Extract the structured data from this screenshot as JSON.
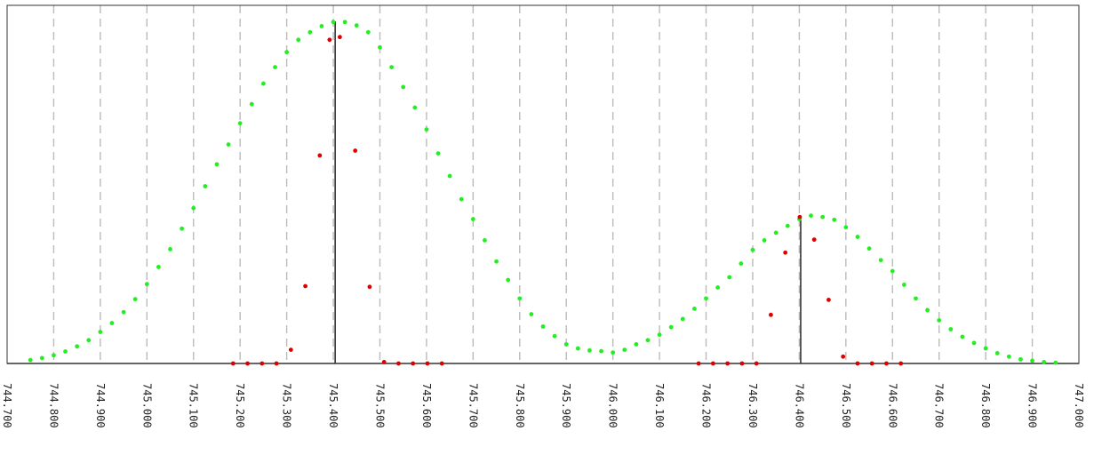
{
  "chart_data": {
    "type": "scatter",
    "title": "",
    "xlabel": "",
    "ylabel": "",
    "xlim": [
      744.7,
      747.0
    ],
    "ylim": [
      0,
      1.0
    ],
    "grid": "vertical dashed",
    "legend": "none",
    "x_ticks": [
      "744.700",
      "744.800",
      "744.900",
      "745.000",
      "745.100",
      "745.200",
      "745.300",
      "745.400",
      "745.500",
      "745.600",
      "745.700",
      "745.800",
      "745.900",
      "746.000",
      "746.100",
      "746.200",
      "746.300",
      "746.400",
      "746.500",
      "746.600",
      "746.700",
      "746.800",
      "746.900",
      "747.000"
    ],
    "tick_values": [
      744.7,
      744.8,
      744.9,
      745.0,
      745.1,
      745.2,
      745.3,
      745.4,
      745.5,
      745.6,
      745.7,
      745.8,
      745.9,
      746.0,
      746.1,
      746.2,
      746.3,
      746.4,
      746.5,
      746.6,
      746.7,
      746.8,
      746.9,
      747.0
    ],
    "colors": {
      "theoretical": "#22ee22",
      "observed": "#dd0000",
      "stick": "#333333",
      "grid": "#bbbbbb",
      "frame": "#333333"
    },
    "series": [
      {
        "points": [
          [
            744.75,
            0.01
          ],
          [
            744.775,
            0.016
          ],
          [
            744.8,
            0.024
          ],
          [
            744.825,
            0.035
          ],
          [
            744.85,
            0.05
          ],
          [
            744.875,
            0.068
          ],
          [
            744.9,
            0.092
          ],
          [
            744.925,
            0.118
          ],
          [
            744.95,
            0.15
          ],
          [
            744.975,
            0.188
          ],
          [
            745.0,
            0.232
          ],
          [
            745.025,
            0.282
          ],
          [
            745.05,
            0.334
          ],
          [
            745.075,
            0.394
          ],
          [
            745.1,
            0.454
          ],
          [
            745.125,
            0.518
          ],
          [
            745.15,
            0.582
          ],
          [
            745.175,
            0.64
          ],
          [
            745.2,
            0.702
          ],
          [
            745.225,
            0.758
          ],
          [
            745.25,
            0.818
          ],
          [
            745.275,
            0.866
          ],
          [
            745.3,
            0.91
          ],
          [
            745.325,
            0.946
          ],
          [
            745.35,
            0.968
          ],
          [
            745.375,
            0.986
          ],
          [
            745.4,
            0.998
          ],
          [
            745.425,
            0.998
          ],
          [
            745.45,
            0.988
          ],
          [
            745.475,
            0.968
          ],
          [
            745.5,
            0.924
          ],
          [
            745.525,
            0.866
          ],
          [
            745.55,
            0.808
          ],
          [
            745.575,
            0.748
          ],
          [
            745.6,
            0.684
          ],
          [
            745.625,
            0.614
          ],
          [
            745.65,
            0.548
          ],
          [
            745.675,
            0.48
          ],
          [
            745.7,
            0.422
          ],
          [
            745.725,
            0.36
          ],
          [
            745.75,
            0.298
          ],
          [
            745.775,
            0.244
          ],
          [
            745.8,
            0.19
          ],
          [
            745.825,
            0.144
          ],
          [
            745.85,
            0.108
          ],
          [
            745.875,
            0.08
          ],
          [
            745.9,
            0.056
          ],
          [
            745.925,
            0.044
          ],
          [
            745.95,
            0.038
          ],
          [
            745.975,
            0.036
          ],
          [
            746.0,
            0.032
          ],
          [
            746.025,
            0.04
          ],
          [
            746.05,
            0.056
          ],
          [
            746.075,
            0.068
          ],
          [
            746.1,
            0.084
          ],
          [
            746.125,
            0.106
          ],
          [
            746.15,
            0.13
          ],
          [
            746.175,
            0.16
          ],
          [
            746.2,
            0.19
          ],
          [
            746.225,
            0.222
          ],
          [
            746.25,
            0.252
          ],
          [
            746.275,
            0.292
          ],
          [
            746.3,
            0.332
          ],
          [
            746.325,
            0.36
          ],
          [
            746.35,
            0.382
          ],
          [
            746.375,
            0.402
          ],
          [
            746.4,
            0.422
          ],
          [
            746.425,
            0.432
          ],
          [
            746.45,
            0.428
          ],
          [
            746.475,
            0.42
          ],
          [
            746.5,
            0.398
          ],
          [
            746.525,
            0.37
          ],
          [
            746.55,
            0.336
          ],
          [
            746.575,
            0.302
          ],
          [
            746.6,
            0.27
          ],
          [
            746.625,
            0.23
          ],
          [
            746.65,
            0.19
          ],
          [
            746.675,
            0.156
          ],
          [
            746.7,
            0.126
          ],
          [
            746.725,
            0.1
          ],
          [
            746.75,
            0.078
          ],
          [
            746.775,
            0.06
          ],
          [
            746.8,
            0.044
          ],
          [
            746.825,
            0.03
          ],
          [
            746.85,
            0.02
          ],
          [
            746.875,
            0.012
          ],
          [
            746.9,
            0.008
          ],
          [
            746.925,
            0.004
          ],
          [
            746.95,
            0.002
          ]
        ]
      },
      {
        "points": [
          [
            745.185,
            0.0
          ],
          [
            745.216,
            0.0
          ],
          [
            745.247,
            0.0
          ],
          [
            745.278,
            0.0
          ],
          [
            745.309,
            0.04
          ],
          [
            745.34,
            0.226
          ],
          [
            745.371,
            0.608
          ],
          [
            745.392,
            0.946
          ],
          [
            745.414,
            0.954
          ],
          [
            745.447,
            0.622
          ],
          [
            745.478,
            0.224
          ],
          [
            745.509,
            0.004
          ],
          [
            745.54,
            0.0
          ],
          [
            745.571,
            0.0
          ],
          [
            745.602,
            0.0
          ],
          [
            745.633,
            0.0
          ],
          [
            746.184,
            0.0
          ],
          [
            746.215,
            0.0
          ],
          [
            746.246,
            0.0
          ],
          [
            746.277,
            0.0
          ],
          [
            746.308,
            0.0
          ],
          [
            746.339,
            0.142
          ],
          [
            746.37,
            0.324
          ],
          [
            746.401,
            0.428
          ],
          [
            746.432,
            0.362
          ],
          [
            746.463,
            0.186
          ],
          [
            746.494,
            0.02
          ],
          [
            746.525,
            0.0
          ],
          [
            746.556,
            0.0
          ],
          [
            746.587,
            0.0
          ],
          [
            746.618,
            0.0
          ]
        ]
      }
    ],
    "sticks": [
      {
        "x": 745.404,
        "y": 1.0
      },
      {
        "x": 746.403,
        "y": 0.428
      }
    ]
  }
}
